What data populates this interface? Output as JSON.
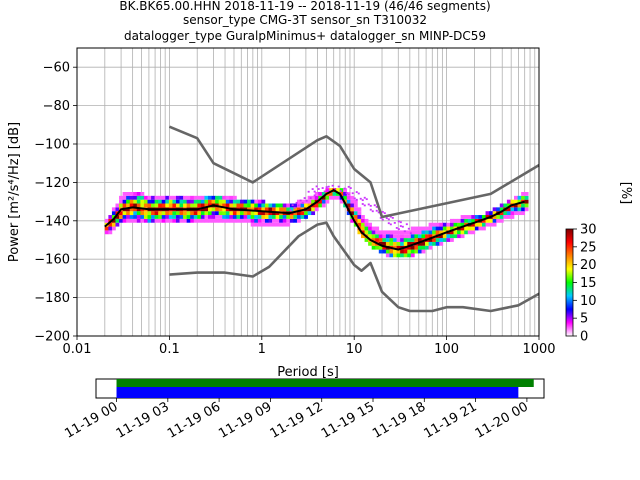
{
  "header": {
    "line1": "BK.BK65.00.HHN   2018-11-19 -- 2018-11-19  (46/46 segments)",
    "line2": "sensor_type CMG-3T sensor_sn T310032",
    "line3": "datalogger_type GuralpMinimus+ datalogger_sn MINP-DC59"
  },
  "colors": {
    "model_curves": "#666666",
    "mean_curve": "#000000",
    "grid": "#b0b0b0",
    "timeline_green": "#008000",
    "timeline_blue": "#0000ff"
  },
  "chart_data": [
    {
      "type": "heatmap",
      "xlabel": "Period [s]",
      "ylabel": "Power [m²/s⁴/Hz] [dB]",
      "xscale": "log",
      "xlim": [
        0.01,
        1000
      ],
      "ylim": [
        -200,
        -50
      ],
      "xticks": [
        {
          "value": 0.01,
          "label": "0.01"
        },
        {
          "value": 0.1,
          "label": "0.1"
        },
        {
          "value": 1,
          "label": "1"
        },
        {
          "value": 10,
          "label": "10"
        },
        {
          "value": 100,
          "label": "100"
        },
        {
          "value": 1000,
          "label": "1000"
        }
      ],
      "yticks": [
        -60,
        -80,
        -100,
        -120,
        -140,
        -160,
        -180,
        -200
      ],
      "grid": true,
      "colorbar": {
        "label": "[%]",
        "min": 0,
        "max": 30,
        "ticks": [
          0,
          5,
          10,
          15,
          20,
          25,
          30
        ],
        "colormap": [
          "#ffffff",
          "#ff00ff",
          "#0000ff",
          "#00c8ff",
          "#00ff00",
          "#ffff00",
          "#ff8000",
          "#ff0000",
          "#800000"
        ]
      },
      "series": [
        {
          "name": "",
          "style": "gray",
          "points": [
            [
              0.1,
              -91
            ],
            [
              0.2,
              -97
            ],
            [
              0.3,
              -110
            ],
            [
              0.8,
              -120
            ],
            [
              4,
              -98
            ],
            [
              5,
              -96
            ],
            [
              7,
              -101
            ],
            [
              10,
              -113
            ],
            [
              15,
              -120
            ],
            [
              20,
              -138
            ],
            [
              300,
              -126
            ],
            [
              1000,
              -111
            ]
          ]
        },
        {
          "name": "",
          "style": "gray",
          "points": [
            [
              0.1,
              -168
            ],
            [
              0.2,
              -167
            ],
            [
              0.4,
              -167
            ],
            [
              0.8,
              -169
            ],
            [
              1.2,
              -164
            ],
            [
              2.5,
              -148
            ],
            [
              4,
              -142
            ],
            [
              5,
              -141
            ],
            [
              6,
              -148
            ],
            [
              10,
              -163
            ],
            [
              12,
              -166
            ],
            [
              15,
              -162
            ],
            [
              20,
              -177
            ],
            [
              30,
              -185
            ],
            [
              40,
              -187
            ],
            [
              70,
              -187
            ],
            [
              100,
              -185
            ],
            [
              150,
              -185
            ],
            [
              300,
              -187
            ],
            [
              600,
              -184
            ],
            [
              1000,
              -178
            ]
          ]
        },
        {
          "name": "",
          "style": "mean",
          "points": [
            [
              0.02,
              -143
            ],
            [
              0.025,
              -139
            ],
            [
              0.03,
              -134
            ],
            [
              0.04,
              -133
            ],
            [
              0.06,
              -134
            ],
            [
              0.1,
              -134
            ],
            [
              0.2,
              -134
            ],
            [
              0.3,
              -132
            ],
            [
              0.5,
              -134
            ],
            [
              1,
              -135
            ],
            [
              2,
              -136
            ],
            [
              3,
              -134
            ],
            [
              4,
              -130
            ],
            [
              5,
              -126
            ],
            [
              6,
              -124
            ],
            [
              7,
              -126
            ],
            [
              8,
              -131
            ],
            [
              10,
              -140
            ],
            [
              12,
              -146
            ],
            [
              15,
              -150
            ],
            [
              20,
              -153
            ],
            [
              30,
              -155
            ],
            [
              40,
              -153
            ],
            [
              60,
              -150
            ],
            [
              100,
              -146
            ],
            [
              150,
              -143
            ],
            [
              200,
              -141
            ],
            [
              300,
              -138
            ],
            [
              400,
              -135
            ],
            [
              500,
              -132
            ],
            [
              700,
              -130
            ]
          ]
        }
      ],
      "density_band": [
        [
          0.02,
          -146,
          -140
        ],
        [
          0.03,
          -138,
          -126
        ],
        [
          0.05,
          -140,
          -126
        ],
        [
          0.08,
          -139,
          -127
        ],
        [
          0.15,
          -139,
          -127
        ],
        [
          0.3,
          -138,
          -126
        ],
        [
          0.5,
          -139,
          -128
        ],
        [
          1,
          -141,
          -130
        ],
        [
          2,
          -140,
          -131
        ],
        [
          3,
          -136,
          -128
        ],
        [
          4,
          -131,
          -125
        ],
        [
          6,
          -126,
          -122
        ],
        [
          8,
          -132,
          -124
        ],
        [
          10,
          -141,
          -130
        ],
        [
          13,
          -148,
          -140
        ],
        [
          17,
          -154,
          -144
        ],
        [
          25,
          -158,
          -146
        ],
        [
          40,
          -157,
          -144
        ],
        [
          60,
          -153,
          -142
        ],
        [
          100,
          -149,
          -140
        ],
        [
          150,
          -146,
          -137
        ],
        [
          250,
          -142,
          -136
        ],
        [
          400,
          -138,
          -131
        ],
        [
          700,
          -134,
          -125
        ]
      ],
      "outlier_band": [
        [
          2,
          -135,
          -132
        ],
        [
          3,
          -130,
          -126
        ],
        [
          4,
          -126,
          -122
        ],
        [
          6,
          -124,
          -121
        ],
        [
          8,
          -126,
          -122
        ],
        [
          10,
          -129,
          -124
        ],
        [
          15,
          -135,
          -130
        ],
        [
          20,
          -140,
          -135
        ],
        [
          30,
          -145,
          -140
        ],
        [
          40,
          -147,
          -143
        ]
      ]
    },
    {
      "type": "timeline",
      "xticks": [
        "11-19 00",
        "11-19 03",
        "11-19 06",
        "11-19 09",
        "11-19 12",
        "11-19 15",
        "11-19 18",
        "11-19 21",
        "11-20 00"
      ],
      "xlim_hours": [
        -1.2,
        25
      ],
      "bars": [
        {
          "color": "green",
          "start_hour": 0,
          "end_hour": 24.4
        },
        {
          "color": "blue",
          "start_hour": 0,
          "end_hour": 23.5
        }
      ]
    }
  ]
}
